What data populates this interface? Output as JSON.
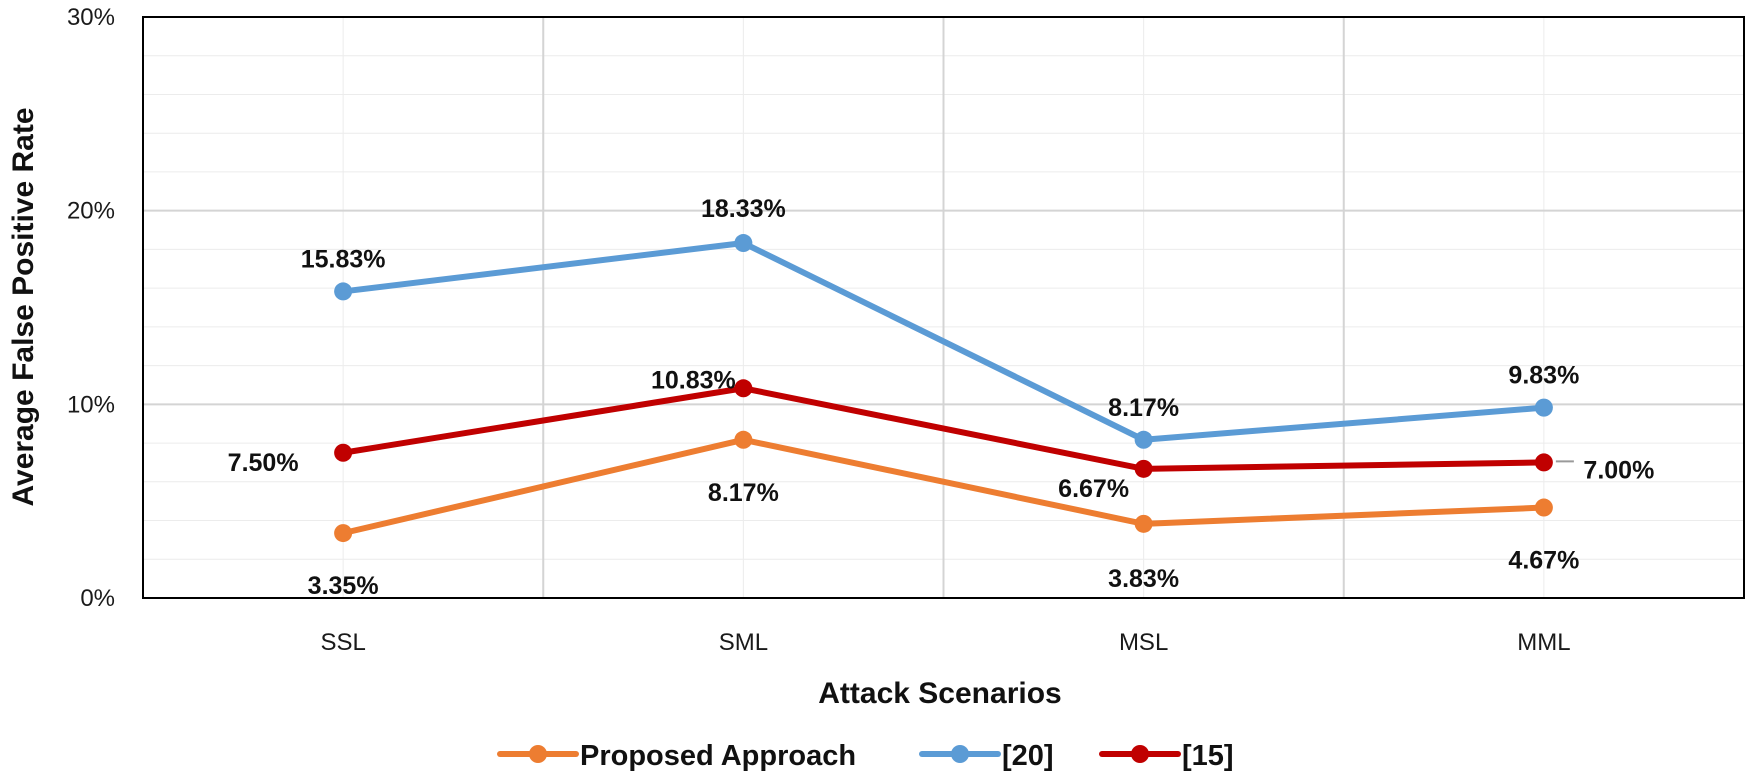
{
  "chart_data": {
    "type": "line",
    "title": "",
    "xlabel": "Attack Scenarios",
    "ylabel": "Average False Positive Rate",
    "categories": [
      "SSL",
      "SML",
      "MSL",
      "MML"
    ],
    "ylim": [
      0,
      30
    ],
    "y_ticks": [
      0,
      10,
      20,
      30
    ],
    "y_tick_labels": [
      "0%",
      "10%",
      "20%",
      "30%"
    ],
    "grid": true,
    "legend_position": "bottom",
    "series": [
      {
        "name": "Proposed Approach",
        "color": "#ED7D31",
        "values": [
          3.35,
          8.17,
          3.83,
          4.67
        ],
        "labels": [
          "3.35%",
          "8.17%",
          "3.83%",
          "4.67%"
        ]
      },
      {
        "name": "[20]",
        "color": "#5B9BD5",
        "values": [
          15.83,
          18.33,
          8.17,
          9.83
        ],
        "labels": [
          "15.83%",
          "18.33%",
          "8.17%",
          "9.83%"
        ]
      },
      {
        "name": "[15]",
        "color": "#C00000",
        "values": [
          7.5,
          10.83,
          6.67,
          7.0
        ],
        "labels": [
          "7.50%",
          "10.83%",
          "6.67%",
          "7.00%"
        ]
      }
    ]
  }
}
